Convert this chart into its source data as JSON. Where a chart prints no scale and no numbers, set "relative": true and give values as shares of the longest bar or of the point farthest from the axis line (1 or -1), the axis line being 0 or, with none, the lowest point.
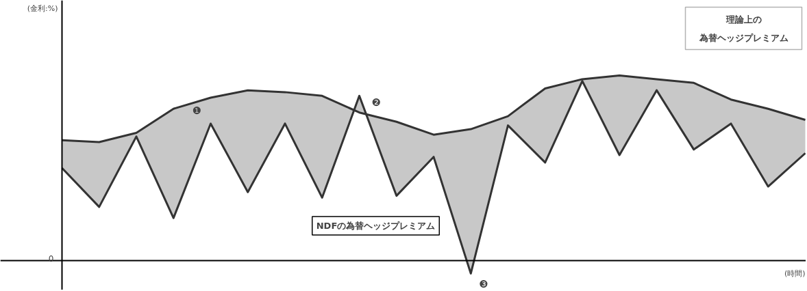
{
  "chart_data": {
    "type": "line",
    "relative": true,
    "xlabel": "(時間)",
    "categories": [
      null,
      null,
      null,
      null,
      null,
      null,
      null,
      null,
      null,
      null,
      null,
      null,
      null,
      null,
      null,
      null,
      null,
      null,
      null,
      null,
      null
    ],
    "series": [
      {
        "color": "#333333",
        "values": [
          0.65,
          0.64,
          0.69,
          0.82,
          0.88,
          0.92,
          0.91,
          0.89,
          0.8,
          0.75,
          0.68,
          0.71,
          0.78,
          0.93,
          0.98,
          1.0,
          0.98,
          0.96,
          0.87,
          0.82,
          0.76
        ],
        "upper": [
          0.65,
          0.64,
          0.69,
          0.82,
          0.88,
          0.92,
          0.91,
          0.89,
          0.8,
          0.75,
          0.68,
          0.71,
          0.78,
          0.93,
          0.98,
          1.0,
          0.98,
          0.96,
          0.87,
          0.82,
          0.76
        ],
        "lower": [
          0.5,
          0.29,
          0.67,
          0.23,
          0.74,
          0.37,
          0.74,
          0.34,
          0.89,
          0.35,
          0.56,
          -0.07,
          0.73,
          0.53,
          0.97,
          0.57,
          0.92,
          0.6,
          0.74,
          0.4,
          0.58
        ]
      },
      {
        "color": "#333333",
        "values": [
          0.5,
          0.29,
          0.67,
          0.23,
          0.74,
          0.37,
          0.74,
          0.34,
          0.89,
          0.35,
          0.56,
          -0.07,
          0.73,
          0.53,
          0.97,
          0.57,
          0.92,
          0.6,
          0.74,
          0.4,
          0.58
        ]
      }
    ],
    "annotations": [
      "(金利:%)",
      "0",
      "❶",
      "❷",
      "❸",
      "理論上の",
      "為替ヘッジプレミアム",
      "NDFの為替ヘッジプレミアム"
    ]
  }
}
